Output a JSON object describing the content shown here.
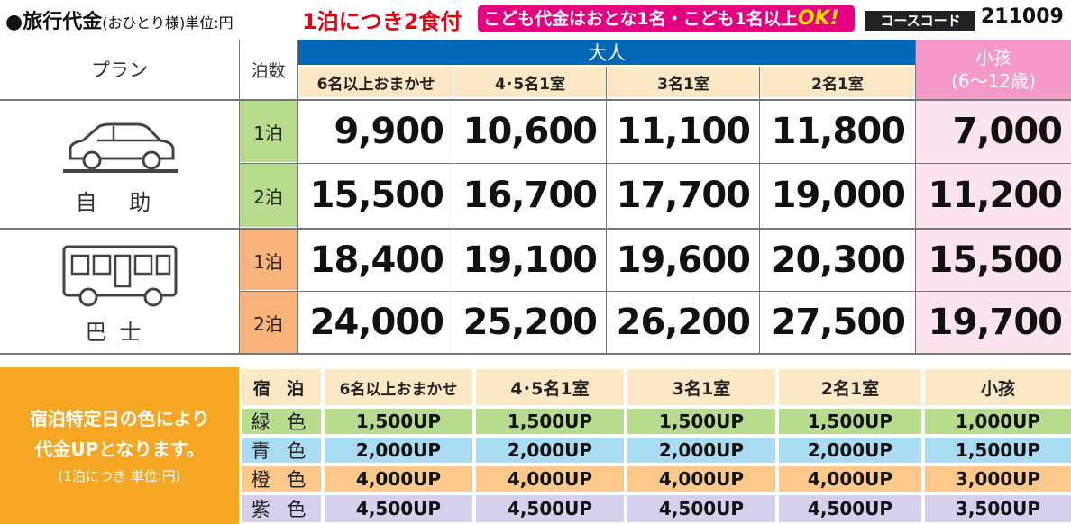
{
  "header": {
    "title": "●旅行代金",
    "title_note": "(おひとり様)単位:円",
    "meal": "1泊につき2食付",
    "badge_text": "こども代金はおとな1名・こども1名以上",
    "badge_ok": "OK!",
    "course_code_label": "コースコード",
    "course_code": "211009"
  },
  "table": {
    "plan_header": "プラン",
    "nights_header": "泊数",
    "adult_header": "大人",
    "child_header": "小孩",
    "child_header_sub": "(6〜12歳)",
    "columns": [
      "6名以上おまかせ",
      "4･5名1室",
      "3名1室",
      "2名1室"
    ],
    "plans": [
      {
        "label": "自 助",
        "icon": "car-icon",
        "rows": [
          {
            "nights": "1泊",
            "prices": [
              "9,900",
              "10,600",
              "11,100",
              "11,800",
              "7,000"
            ]
          },
          {
            "nights": "2泊",
            "prices": [
              "15,500",
              "16,700",
              "17,700",
              "19,000",
              "11,200"
            ]
          }
        ]
      },
      {
        "label": "巴士",
        "icon": "bus-icon",
        "rows": [
          {
            "nights": "1泊",
            "prices": [
              "18,400",
              "19,100",
              "19,600",
              "20,300",
              "15,500"
            ]
          },
          {
            "nights": "2泊",
            "prices": [
              "24,000",
              "25,200",
              "26,200",
              "27,500",
              "19,700"
            ]
          }
        ]
      }
    ],
    "colors": {
      "adult_header_bg": "#0068b7",
      "child_bg": "#fbe4ef",
      "child_header_bg": "#f59ac8",
      "nights_green": "#b7dc8e",
      "nights_orange": "#f8b27a"
    }
  },
  "surcharge": {
    "note_line1": "宿泊特定日の色により",
    "note_line2": "代金UPとなります。",
    "note_line3": "(1泊につき 単位:円)",
    "color_header": "宿 泊",
    "columns": [
      "6名以上おまかせ",
      "4･5名1室",
      "3名1室",
      "2名1室",
      "小孩"
    ],
    "rows": [
      {
        "color": "緑 色",
        "bg": "#b7dc8e",
        "values": [
          "1,500UP",
          "1,500UP",
          "1,500UP",
          "1,500UP",
          "1,000UP"
        ]
      },
      {
        "color": "青 色",
        "bg": "#a9dbf3",
        "values": [
          "2,000UP",
          "2,000UP",
          "2,000UP",
          "2,000UP",
          "1,500UP"
        ]
      },
      {
        "color": "橙 色",
        "bg": "#fcc98a",
        "values": [
          "4,000UP",
          "4,000UP",
          "4,000UP",
          "4,000UP",
          "3,000UP"
        ]
      },
      {
        "color": "紫 色",
        "bg": "#d5d0ec",
        "values": [
          "4,500UP",
          "4,500UP",
          "4,500UP",
          "4,500UP",
          "3,500UP"
        ]
      }
    ]
  }
}
